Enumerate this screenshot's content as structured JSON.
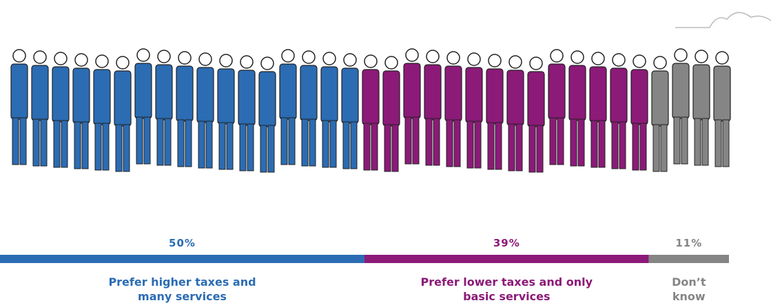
{
  "chart_data": {
    "type": "stacked_bar",
    "xlim": [
      0,
      100
    ],
    "series": [
      {
        "name": "Prefer higher taxes and many services",
        "color": "#2b6cb3",
        "values": [
          50
        ],
        "value_labels": [
          "50%"
        ]
      },
      {
        "name": "Prefer lower taxes and only basic services",
        "color": "#8c1a78",
        "values": [
          39
        ],
        "value_labels": [
          "39%"
        ]
      },
      {
        "name": "Don’t know",
        "color": "#858585",
        "values": [
          11
        ],
        "value_labels": [
          "11%"
        ]
      }
    ]
  }
}
